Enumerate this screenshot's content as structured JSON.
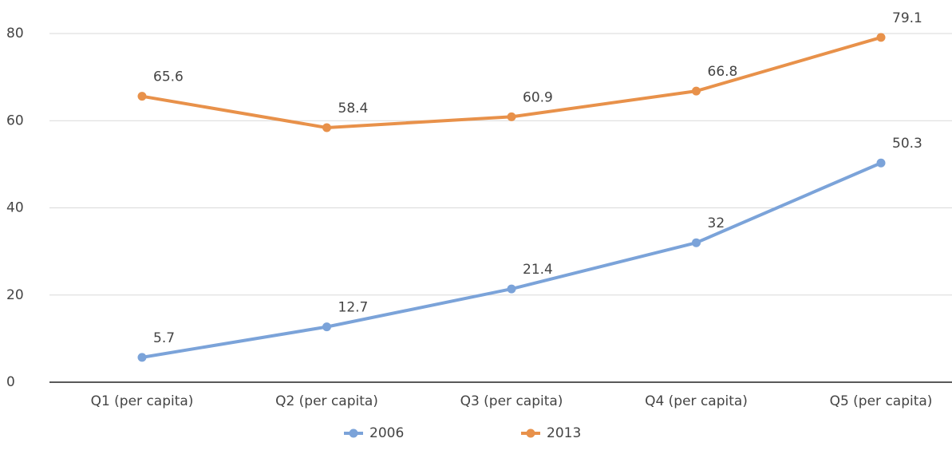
{
  "chart_data": {
    "type": "line",
    "categories": [
      "Q1 (per capita)",
      "Q2 (per capita)",
      "Q3 (per capita)",
      "Q4 (per capita)",
      "Q5 (per capita)"
    ],
    "series": [
      {
        "name": "2006",
        "color": "#7ba3d9",
        "values": [
          5.7,
          12.7,
          21.4,
          32,
          50.3
        ]
      },
      {
        "name": "2013",
        "color": "#e8914a",
        "values": [
          65.6,
          58.4,
          60.9,
          66.8,
          79.1
        ]
      }
    ],
    "ylim": [
      0,
      80
    ],
    "yticks": [
      0,
      20,
      40,
      60,
      80
    ],
    "grid": true,
    "legend": "bottom"
  }
}
